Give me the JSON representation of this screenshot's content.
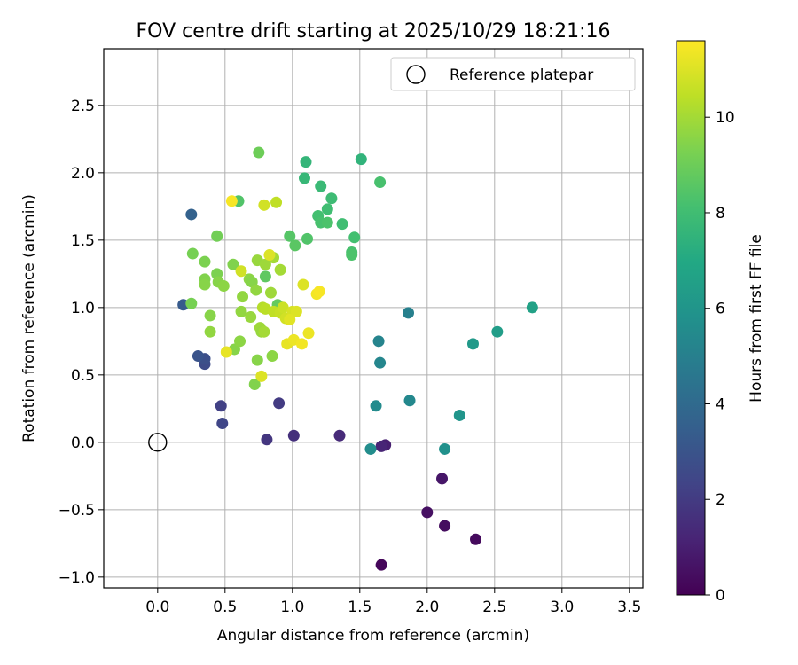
{
  "chart_data": {
    "type": "scatter",
    "title": "FOV centre drift starting at 2025/10/29 18:21:16",
    "xlabel": "Angular distance from reference (arcmin)",
    "ylabel": "Rotation from reference (arcmin)",
    "xlim": [
      -0.4,
      3.6
    ],
    "ylim": [
      -1.08,
      2.92
    ],
    "x_ticks": [
      0.0,
      0.5,
      1.0,
      1.5,
      2.0,
      2.5,
      3.0,
      3.5
    ],
    "x_tick_labels": [
      "0.0",
      "0.5",
      "1.0",
      "1.5",
      "2.0",
      "2.5",
      "3.0",
      "3.5"
    ],
    "y_ticks": [
      -1.0,
      -0.5,
      0.0,
      0.5,
      1.0,
      1.5,
      2.0,
      2.5
    ],
    "y_tick_labels": [
      "−1.0",
      "−0.5",
      "0.0",
      "0.5",
      "1.0",
      "1.5",
      "2.0",
      "2.5"
    ],
    "grid": true,
    "legend": {
      "placement": "top-right",
      "entries": [
        "Reference platepar"
      ]
    },
    "reference_point": {
      "x": 0.0,
      "y": 0.0,
      "label": "Reference platepar"
    },
    "colorbar": {
      "label": "Hours from first FF file",
      "range": [
        0,
        11.6
      ],
      "colormap": "viridis",
      "ticks": [
        0,
        2,
        4,
        6,
        8,
        10
      ],
      "tick_labels": [
        "0",
        "2",
        "4",
        "6",
        "8",
        "10"
      ]
    },
    "points": [
      [
        1.66,
        -0.91,
        0.2
      ],
      [
        2.36,
        -0.72,
        0.3
      ],
      [
        2.13,
        -0.62,
        0.4
      ],
      [
        2.0,
        -0.52,
        0.5
      ],
      [
        2.11,
        -0.27,
        0.7
      ],
      [
        1.69,
        -0.02,
        1.0
      ],
      [
        1.66,
        -0.03,
        1.2
      ],
      [
        1.35,
        0.05,
        1.4
      ],
      [
        1.01,
        0.05,
        1.6
      ],
      [
        0.81,
        0.02,
        1.8
      ],
      [
        0.9,
        0.29,
        2.0
      ],
      [
        0.47,
        0.27,
        2.2
      ],
      [
        0.48,
        0.14,
        2.4
      ],
      [
        0.35,
        0.58,
        2.6
      ],
      [
        0.35,
        0.62,
        2.8
      ],
      [
        0.3,
        0.64,
        3.0
      ],
      [
        0.19,
        1.02,
        3.3
      ],
      [
        0.25,
        1.69,
        3.6
      ],
      [
        1.86,
        0.96,
        5.0
      ],
      [
        1.64,
        0.75,
        5.2
      ],
      [
        1.65,
        0.59,
        5.3
      ],
      [
        1.87,
        0.31,
        5.4
      ],
      [
        1.62,
        0.27,
        5.5
      ],
      [
        1.58,
        -0.05,
        5.6
      ],
      [
        2.13,
        -0.05,
        5.8
      ],
      [
        2.24,
        0.2,
        6.0
      ],
      [
        2.34,
        0.73,
        6.2
      ],
      [
        2.52,
        0.82,
        6.4
      ],
      [
        2.78,
        1.0,
        6.6
      ],
      [
        1.51,
        2.1,
        7.5
      ],
      [
        1.1,
        2.08,
        7.6
      ],
      [
        1.09,
        1.96,
        7.7
      ],
      [
        1.21,
        1.9,
        7.8
      ],
      [
        1.29,
        1.81,
        7.9
      ],
      [
        1.26,
        1.73,
        8.0
      ],
      [
        1.19,
        1.68,
        8.1
      ],
      [
        1.21,
        1.63,
        8.2
      ],
      [
        1.26,
        1.63,
        8.3
      ],
      [
        1.37,
        1.62,
        8.0
      ],
      [
        1.46,
        1.52,
        8.1
      ],
      [
        1.44,
        1.41,
        8.2
      ],
      [
        1.44,
        1.39,
        8.3
      ],
      [
        1.11,
        1.51,
        8.4
      ],
      [
        0.98,
        1.53,
        8.5
      ],
      [
        1.02,
        1.46,
        8.6
      ],
      [
        0.6,
        1.79,
        8.4
      ],
      [
        1.65,
        1.93,
        8.2
      ],
      [
        0.8,
        1.23,
        8.7
      ],
      [
        0.89,
        1.02,
        8.8
      ],
      [
        0.75,
        2.15,
        9.0
      ],
      [
        0.26,
        1.4,
        9.2
      ],
      [
        0.35,
        1.34,
        9.3
      ],
      [
        0.44,
        1.53,
        9.1
      ],
      [
        0.35,
        1.21,
        9.4
      ],
      [
        0.35,
        1.17,
        9.5
      ],
      [
        0.44,
        1.25,
        9.3
      ],
      [
        0.45,
        1.19,
        9.5
      ],
      [
        0.49,
        1.16,
        9.6
      ],
      [
        0.56,
        1.32,
        9.4
      ],
      [
        0.63,
        1.08,
        9.7
      ],
      [
        0.68,
        1.21,
        9.6
      ],
      [
        0.7,
        1.19,
        9.5
      ],
      [
        0.73,
        1.13,
        9.7
      ],
      [
        0.74,
        1.35,
        9.8
      ],
      [
        0.8,
        1.32,
        9.9
      ],
      [
        0.86,
        1.37,
        10.0
      ],
      [
        0.91,
        1.28,
        10.0
      ],
      [
        0.84,
        1.11,
        9.9
      ],
      [
        0.85,
        0.64,
        9.6
      ],
      [
        0.74,
        0.61,
        9.5
      ],
      [
        0.72,
        0.43,
        9.4
      ],
      [
        0.57,
        0.69,
        9.5
      ],
      [
        0.61,
        0.75,
        9.6
      ],
      [
        0.62,
        0.97,
        9.7
      ],
      [
        0.69,
        0.93,
        9.8
      ],
      [
        0.76,
        0.85,
        9.9
      ],
      [
        0.77,
        0.82,
        9.8
      ],
      [
        0.79,
        0.82,
        10.0
      ],
      [
        0.25,
        1.03,
        9.2
      ],
      [
        0.39,
        0.94,
        9.5
      ],
      [
        0.39,
        0.82,
        9.7
      ],
      [
        0.78,
        1.0,
        10.3
      ],
      [
        0.8,
        0.99,
        10.4
      ],
      [
        0.86,
        0.97,
        10.5
      ],
      [
        0.91,
        0.96,
        10.6
      ],
      [
        0.93,
        1.0,
        10.7
      ],
      [
        0.95,
        0.92,
        10.8
      ],
      [
        1.0,
        0.97,
        10.9
      ],
      [
        1.03,
        0.97,
        11.0
      ],
      [
        0.98,
        0.91,
        11.1
      ],
      [
        0.96,
        0.73,
        11.2
      ],
      [
        1.01,
        0.76,
        11.3
      ],
      [
        1.07,
        0.73,
        11.4
      ],
      [
        1.08,
        1.17,
        11.0
      ],
      [
        1.12,
        0.81,
        11.3
      ],
      [
        1.18,
        1.1,
        11.4
      ],
      [
        1.2,
        1.12,
        11.5
      ],
      [
        0.83,
        1.39,
        11.0
      ],
      [
        0.88,
        1.78,
        10.5
      ],
      [
        0.79,
        1.76,
        10.8
      ],
      [
        0.62,
        1.27,
        10.8
      ],
      [
        0.55,
        1.79,
        11.5
      ],
      [
        0.51,
        0.67,
        11.2
      ],
      [
        0.77,
        0.49,
        11.0
      ]
    ]
  }
}
